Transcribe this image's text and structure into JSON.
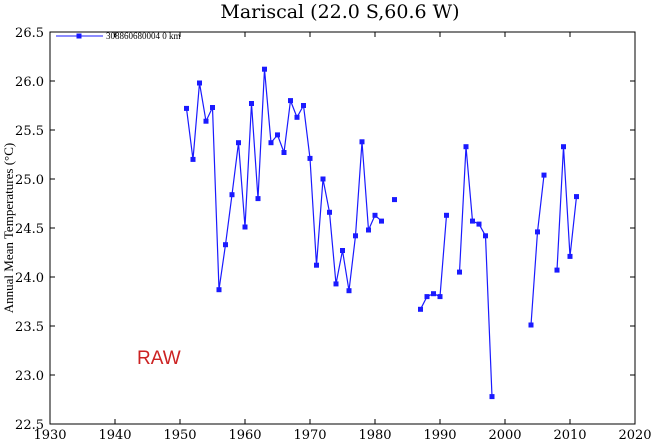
{
  "chart_data": {
    "type": "line",
    "title": "Mariscal (22.0 S,60.6 W)",
    "ylabel": "Annual Mean Temperatures (°C)",
    "xlabel": "",
    "xlim": [
      1930,
      2020
    ],
    "ylim": [
      22.5,
      26.5
    ],
    "xticks": [
      1930,
      1940,
      1950,
      1960,
      1970,
      1980,
      1990,
      2000,
      2010,
      2020
    ],
    "yticks": [
      22.5,
      23.0,
      23.5,
      24.0,
      24.5,
      25.0,
      25.5,
      26.0,
      26.5
    ],
    "x_tick_labels": [
      "1930",
      "1940",
      "1950",
      "1960",
      "1970",
      "1980",
      "1990",
      "2000",
      "2010",
      "2020"
    ],
    "y_tick_labels": [
      "22.5",
      "23.0",
      "23.5",
      "24.0",
      "24.5",
      "25.0",
      "25.5",
      "26.0",
      "26.5"
    ],
    "grid": false,
    "legend_placement": "top-left",
    "annotation": {
      "text": "RAW",
      "color": "#cc2222"
    },
    "series": [
      {
        "name": "308860680004  0 km",
        "color": "#1a1aff",
        "marker": "square",
        "points": [
          [
            1951,
            25.72
          ],
          [
            1952,
            25.2
          ],
          [
            1953,
            25.98
          ],
          [
            1954,
            25.59
          ],
          [
            1955,
            25.73
          ],
          [
            1956,
            23.87
          ],
          [
            1957,
            24.33
          ],
          [
            1958,
            24.84
          ],
          [
            1959,
            25.37
          ],
          [
            1960,
            24.51
          ],
          [
            1961,
            25.77
          ],
          [
            1962,
            24.8
          ],
          [
            1963,
            26.12
          ],
          [
            1964,
            25.37
          ],
          [
            1965,
            25.45
          ],
          [
            1966,
            25.27
          ],
          [
            1967,
            25.8
          ],
          [
            1968,
            25.63
          ],
          [
            1969,
            25.75
          ],
          [
            1970,
            25.21
          ],
          [
            1971,
            24.12
          ],
          [
            1972,
            25.0
          ],
          [
            1973,
            24.66
          ],
          [
            1974,
            23.93
          ],
          [
            1975,
            24.27
          ],
          [
            1976,
            23.86
          ],
          [
            1977,
            24.42
          ],
          [
            1978,
            25.38
          ],
          [
            1979,
            24.48
          ],
          [
            1980,
            24.63
          ],
          [
            1981,
            24.57
          ],
          null,
          [
            1983,
            24.79
          ],
          null,
          null,
          null,
          [
            1987,
            23.67
          ],
          [
            1988,
            23.8
          ],
          [
            1989,
            23.83
          ],
          [
            1990,
            23.8
          ],
          [
            1991,
            24.63
          ],
          null,
          [
            1993,
            24.05
          ],
          [
            1994,
            25.33
          ],
          [
            1995,
            24.57
          ],
          [
            1996,
            24.54
          ],
          [
            1997,
            24.42
          ],
          [
            1998,
            22.78
          ],
          null,
          null,
          null,
          null,
          null,
          [
            2004,
            23.51
          ],
          [
            2005,
            24.46
          ],
          [
            2006,
            25.04
          ],
          null,
          [
            2008,
            24.07
          ],
          [
            2009,
            25.33
          ],
          [
            2010,
            24.21
          ],
          [
            2011,
            24.82
          ]
        ]
      }
    ]
  }
}
